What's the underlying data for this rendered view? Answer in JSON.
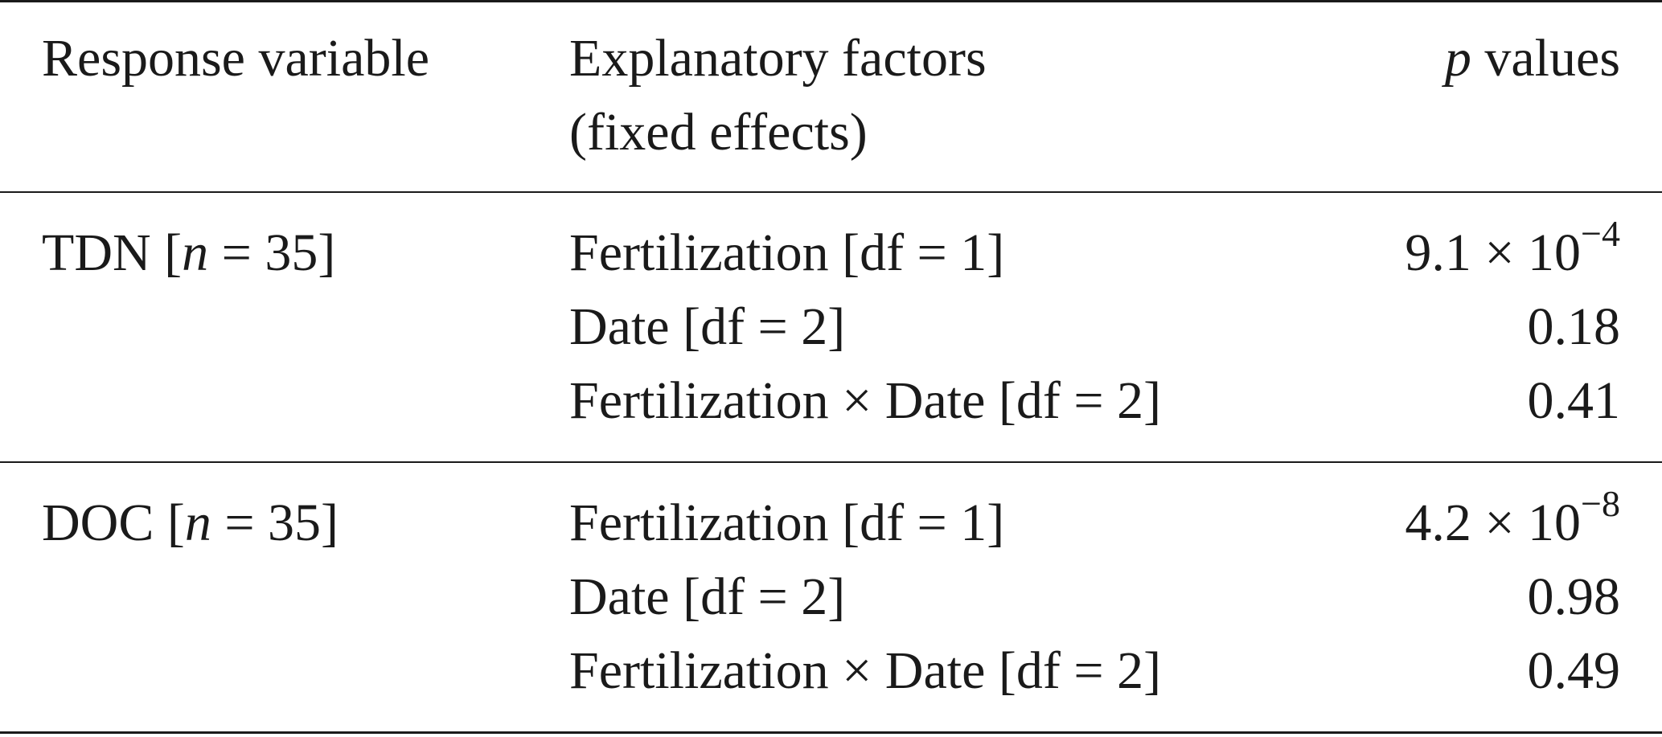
{
  "table": {
    "headers": {
      "response": "Response variable",
      "explanatory_line1": "Explanatory factors",
      "explanatory_line2": "(fixed effects)",
      "pvalues_italic": "p",
      "pvalues_rest": " values"
    },
    "groups": [
      {
        "response_name": "TDN [",
        "response_n_symbol": "n",
        "response_n_value": " = 35]",
        "rows": [
          {
            "factor": "Fertilization [df = 1]",
            "p_mantissa": "9.1 × 10",
            "p_exponent": "−4"
          },
          {
            "factor": "Date [df = 2]",
            "p_value": "0.18"
          },
          {
            "factor": "Fertilization × Date [df = 2]",
            "p_value": "0.41"
          }
        ]
      },
      {
        "response_name": "DOC [",
        "response_n_symbol": "n",
        "response_n_value": " = 35]",
        "rows": [
          {
            "factor": "Fertilization [df = 1]",
            "p_mantissa": "4.2 × 10",
            "p_exponent": "−8"
          },
          {
            "factor": "Date [df = 2]",
            "p_value": "0.98"
          },
          {
            "factor": "Fertilization × Date [df = 2]",
            "p_value": "0.49"
          }
        ]
      }
    ]
  }
}
